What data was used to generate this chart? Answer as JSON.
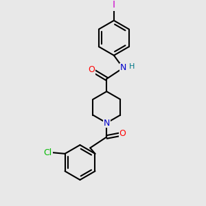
{
  "bg_color": "#e8e8e8",
  "bond_color": "#000000",
  "bond_width": 1.5,
  "atom_colors": {
    "O": "#ff0000",
    "N": "#0000cc",
    "Cl": "#00bb00",
    "I": "#cc00cc",
    "H": "#007788",
    "C": "#000000"
  },
  "font_size": 9,
  "xlim": [
    -1.8,
    2.8
  ],
  "ylim": [
    -3.8,
    4.2
  ]
}
